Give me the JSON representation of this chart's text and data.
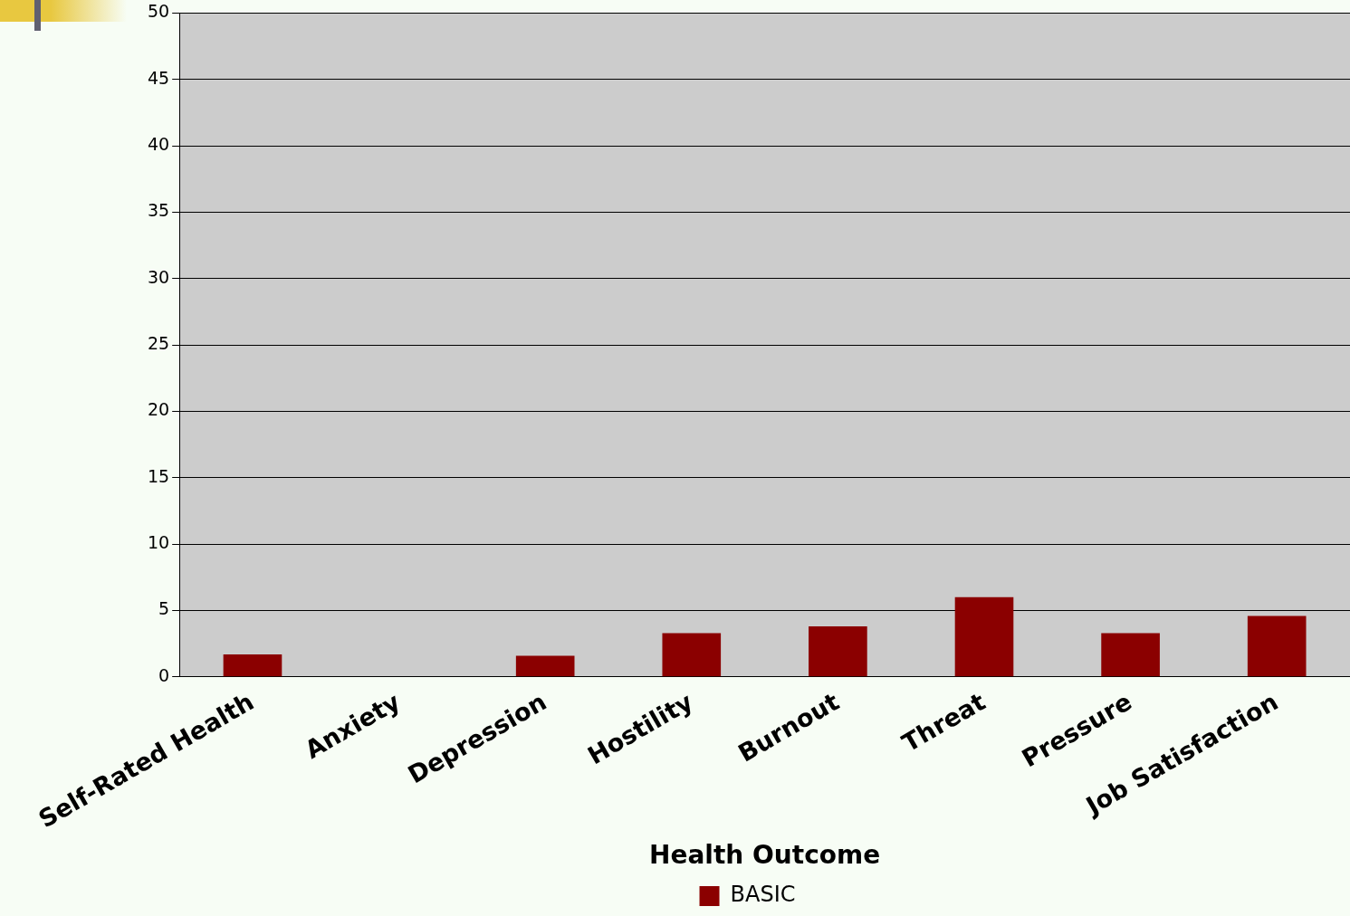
{
  "chart_data": {
    "type": "bar",
    "xlabel": "Health Outcome",
    "categories": [
      "Self-Rated Health",
      "Anxiety",
      "Depression",
      "Hostility",
      "Burnout",
      "Threat",
      "Pressure",
      "Job Satisfaction"
    ],
    "series": [
      {
        "name": "BASIC",
        "color": "#8b0000",
        "values": [
          1.7,
          0,
          1.6,
          3.3,
          3.8,
          6.0,
          3.3,
          4.6
        ]
      }
    ],
    "ylim": [
      0,
      50
    ],
    "yticks": [
      0,
      5,
      10,
      15,
      20,
      25,
      30,
      35,
      40,
      45,
      50
    ],
    "grid": "y",
    "legend": "bottom"
  }
}
